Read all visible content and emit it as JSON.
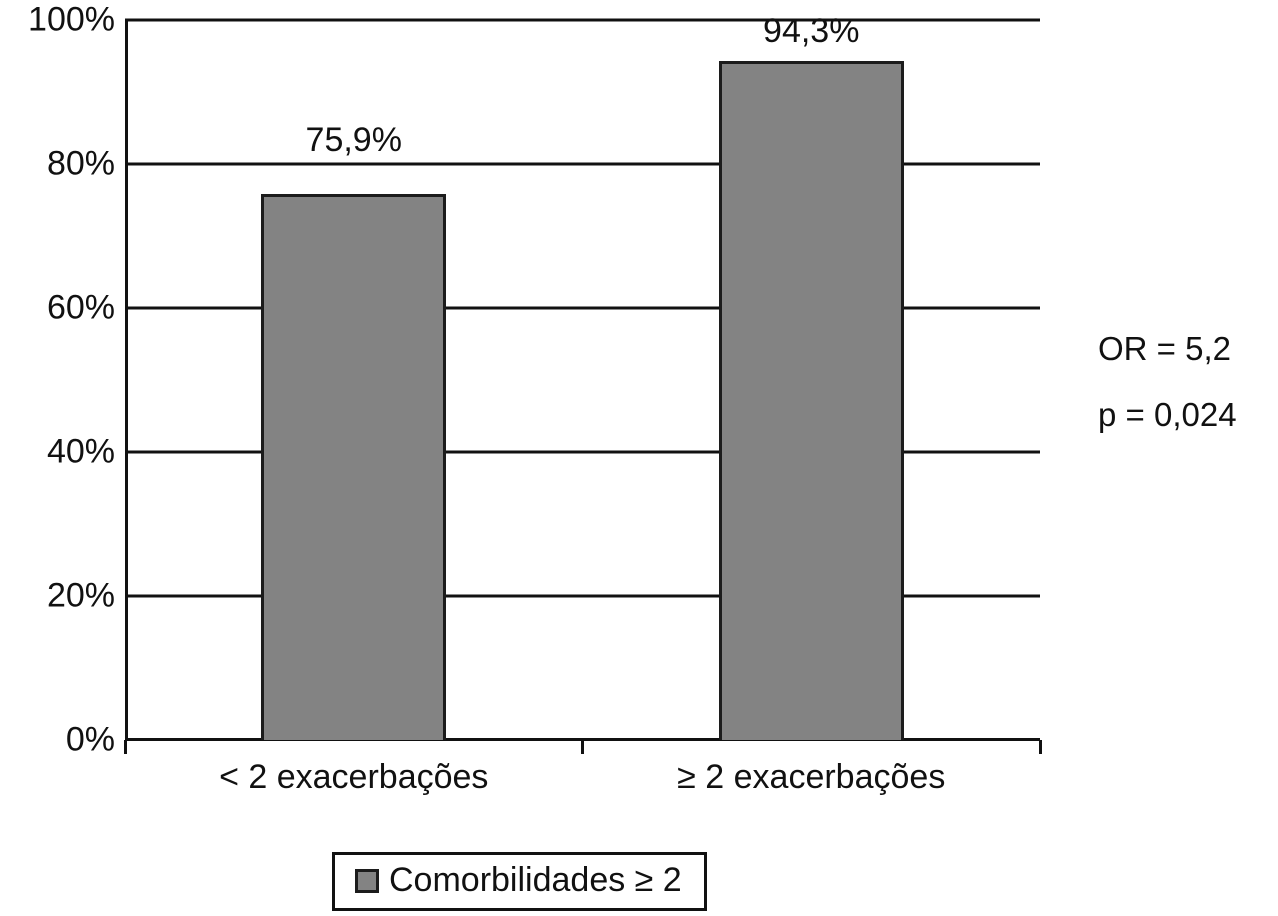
{
  "chart_data": {
    "type": "bar",
    "categories": [
      "< 2 exacerbações",
      "≥ 2 exacerbações"
    ],
    "values": [
      75.9,
      94.3
    ],
    "value_labels": [
      "75,9%",
      "94,3%"
    ],
    "y_ticks": [
      "100%",
      "80%",
      "60%",
      "40%",
      "20%",
      "0%"
    ],
    "y_tick_values": [
      100,
      80,
      60,
      40,
      20,
      0
    ],
    "ylim": [
      0,
      100
    ],
    "grid": true,
    "bar_color": "#838383",
    "bar_border_color": "#1c1c1c",
    "legend": {
      "label": "Comorbilidades ≥ 2",
      "swatch_color": "#838383",
      "position": "bottom"
    },
    "annotations": [
      "OR = 5,2",
      "p = 0,024"
    ],
    "title": "",
    "xlabel": "",
    "ylabel": ""
  }
}
